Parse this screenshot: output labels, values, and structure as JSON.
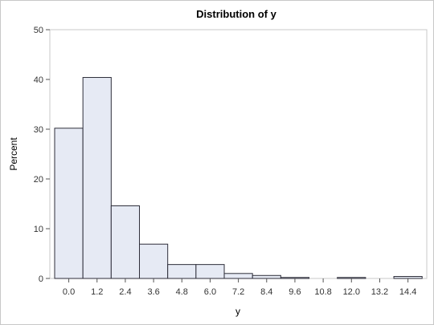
{
  "chart_data": {
    "type": "bar",
    "title": "Distribution of y",
    "xlabel": "y",
    "ylabel": "Percent",
    "ylim": [
      0,
      50
    ],
    "yticks": [
      "0",
      "10",
      "20",
      "30",
      "40",
      "50"
    ],
    "categories": [
      "0.0",
      "1.2",
      "2.4",
      "3.6",
      "4.8",
      "6.0",
      "7.2",
      "8.4",
      "9.6",
      "10.8",
      "12.0",
      "13.2",
      "14.4"
    ],
    "values": [
      30.2,
      40.4,
      14.6,
      6.9,
      2.8,
      2.8,
      1.0,
      0.6,
      0.2,
      0.0,
      0.2,
      0.0,
      0.4
    ],
    "bar_fill": "#e6eaf4",
    "bar_stroke": "#2e2e3a",
    "grid": false
  }
}
